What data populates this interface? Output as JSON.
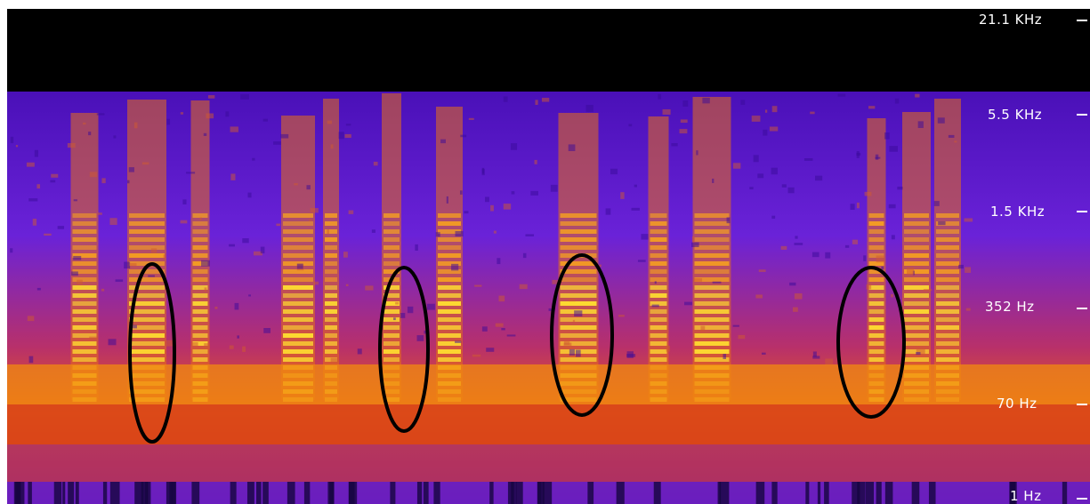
{
  "frequency_axis": {
    "labels": [
      "21.1  KHz",
      "5.5  KHz",
      "1.5  KHz",
      "352  Hz",
      "70  Hz",
      "1  Hz"
    ]
  },
  "highlighted_regions_count": 4,
  "palette": {
    "background": "#000000",
    "low": "#6a1fd0",
    "mid": "#e0501a",
    "high": "#ffe030"
  }
}
